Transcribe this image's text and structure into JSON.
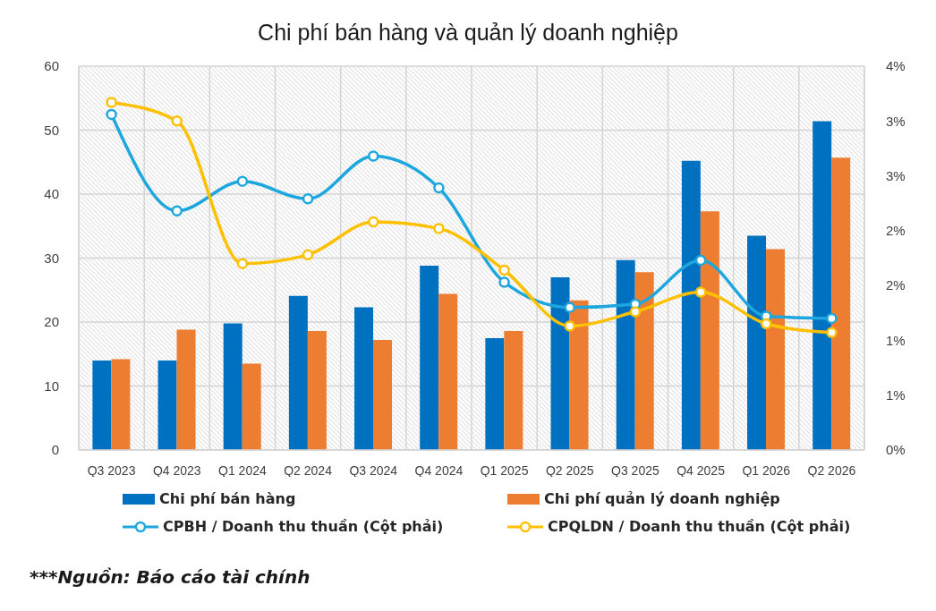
{
  "chart_data": {
    "type": "bar",
    "title": "Chi phí bán hàng và quản lý doanh nghiệp",
    "categories": [
      "Q3 2023",
      "Q4 2023",
      "Q1 2024",
      "Q2 2024",
      "Q3 2024",
      "Q4 2024",
      "Q1 2025",
      "Q2 2025",
      "Q3 2025",
      "Q4 2025",
      "Q1 2026",
      "Q2 2026"
    ],
    "series": [
      {
        "name": "Chi phí bán hàng",
        "color": "#0070c0",
        "values": [
          14.0,
          14.0,
          19.8,
          24.1,
          22.3,
          28.8,
          17.5,
          27.0,
          29.7,
          45.2,
          33.5,
          51.4
        ]
      },
      {
        "name": "Chi phí quản lý doanh nghiệp",
        "color": "#ed7d31",
        "values": [
          14.2,
          18.8,
          13.5,
          18.6,
          17.2,
          24.4,
          18.6,
          23.4,
          27.8,
          37.3,
          31.4,
          45.7
        ]
      },
      {
        "name": "CPBH / Doanh thu thuần (Cột phải)",
        "type": "line",
        "axis": "y2",
        "color": "#1ea6df",
        "values": [
          3.06,
          2.18,
          2.45,
          2.29,
          2.68,
          2.39,
          1.53,
          1.3,
          1.33,
          1.73,
          1.22,
          1.2
        ]
      },
      {
        "name": "CPQLDN / Doanh thu thuần (Cột phải)",
        "type": "line",
        "axis": "y2",
        "color": "#ffc000",
        "values": [
          3.17,
          3.0,
          1.7,
          1.78,
          2.08,
          2.02,
          1.64,
          1.13,
          1.26,
          1.44,
          1.15,
          1.07
        ]
      }
    ],
    "ylim": [
      0,
      60
    ],
    "yticks": [
      0,
      10,
      20,
      30,
      40,
      50,
      60
    ],
    "y2lim": [
      0,
      3.5
    ],
    "y2ticks": [
      {
        "value": 0,
        "label": "0%"
      },
      {
        "value": 0.5,
        "label": "1%"
      },
      {
        "value": 1,
        "label": "1%"
      },
      {
        "value": 1.5,
        "label": "2%"
      },
      {
        "value": 2,
        "label": "2%"
      },
      {
        "value": 2.5,
        "label": "3%"
      },
      {
        "value": 3,
        "label": "3%"
      },
      {
        "value": 3.5,
        "label": "4%"
      }
    ],
    "grid": true,
    "legend": "bottom",
    "marker": "circle",
    "annotations": [
      "***Nguồn: Báo cáo tài chính"
    ]
  }
}
